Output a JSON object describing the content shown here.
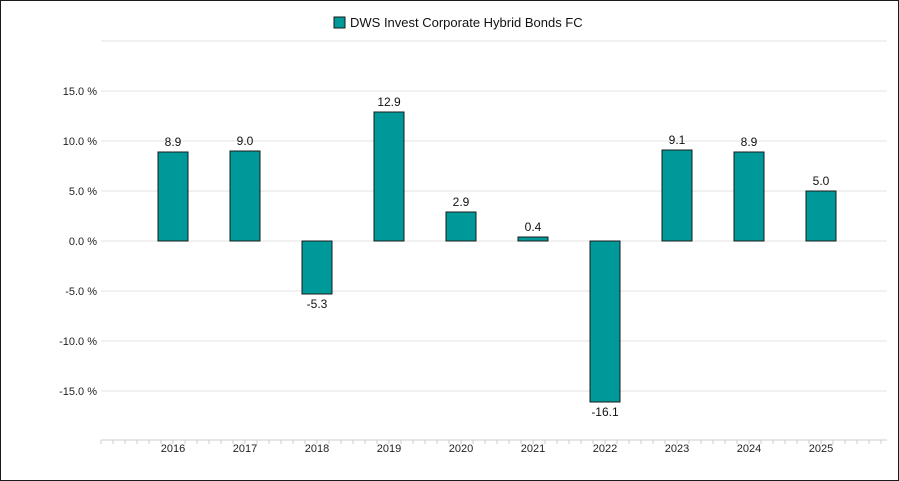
{
  "chart_data": {
    "type": "bar",
    "categories": [
      "2016",
      "2017",
      "2018",
      "2019",
      "2020",
      "2021",
      "2022",
      "2023",
      "2024",
      "2025"
    ],
    "series": [
      {
        "name": "DWS Invest Corporate Hybrid Bonds FC",
        "values": [
          8.9,
          9.0,
          -5.3,
          12.9,
          2.9,
          0.4,
          -16.1,
          9.1,
          8.9,
          5.0
        ],
        "labels": [
          "8.9",
          "9.0",
          "-5.3",
          "12.9",
          "2.9",
          "0.4",
          "-16.1",
          "9.1",
          "8.9",
          "5.0"
        ]
      }
    ],
    "y_ticks": [
      15,
      10,
      5,
      0,
      -5,
      -10,
      -15
    ],
    "y_tick_labels": [
      "15.0 %",
      "10.0 %",
      "5.0 %",
      "0.0 %",
      "-5.0 %",
      "-10.0 %",
      "-15.0 %"
    ],
    "ylim": [
      -20,
      20
    ],
    "title": "",
    "xlabel": "",
    "ylabel": "",
    "grid": true,
    "legend_position": "top-center",
    "colors": {
      "bar_fill": "#009999",
      "bar_stroke": "#1a1a1a",
      "grid": "#e3e3e3"
    }
  }
}
